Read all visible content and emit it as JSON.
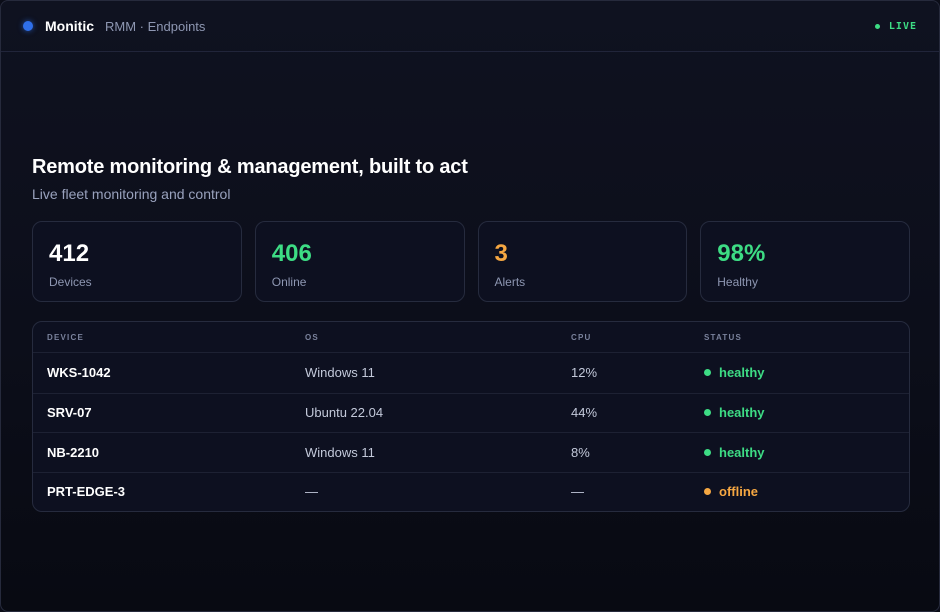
{
  "app": {
    "name": "Monitic",
    "section": "RMM · Endpoints",
    "live_label": "LIVE"
  },
  "hero": {
    "title": "Remote monitoring & management, built to act",
    "subtitle": "Live fleet monitoring and control"
  },
  "stats": [
    {
      "value": "412",
      "label": "Devices",
      "color": "#ffffff"
    },
    {
      "value": "406",
      "label": "Online",
      "color": "#3ddc84"
    },
    {
      "value": "3",
      "label": "Alerts",
      "color": "#f5a742"
    },
    {
      "value": "98%",
      "label": "Healthy",
      "color": "#3ddc84"
    }
  ],
  "table": {
    "headers": [
      "DEVICE",
      "OS",
      "CPU",
      "STATUS"
    ],
    "rows": [
      {
        "device": "WKS-1042",
        "os": "Windows 11",
        "cpu": "12%",
        "status": "healthy",
        "status_color": "#3ddc84"
      },
      {
        "device": "SRV-07",
        "os": "Ubuntu 22.04",
        "cpu": "44%",
        "status": "healthy",
        "status_color": "#3ddc84"
      },
      {
        "device": "NB-2210",
        "os": "Windows 11",
        "cpu": "8%",
        "status": "healthy",
        "status_color": "#3ddc84"
      },
      {
        "device": "PRT-EDGE-3",
        "os": "—",
        "cpu": "—",
        "status": "offline",
        "status_color": "#f5a742"
      }
    ]
  },
  "colors": {
    "accent": "#2f6fe9",
    "healthy": "#3ddc84",
    "warning": "#f5a742"
  }
}
